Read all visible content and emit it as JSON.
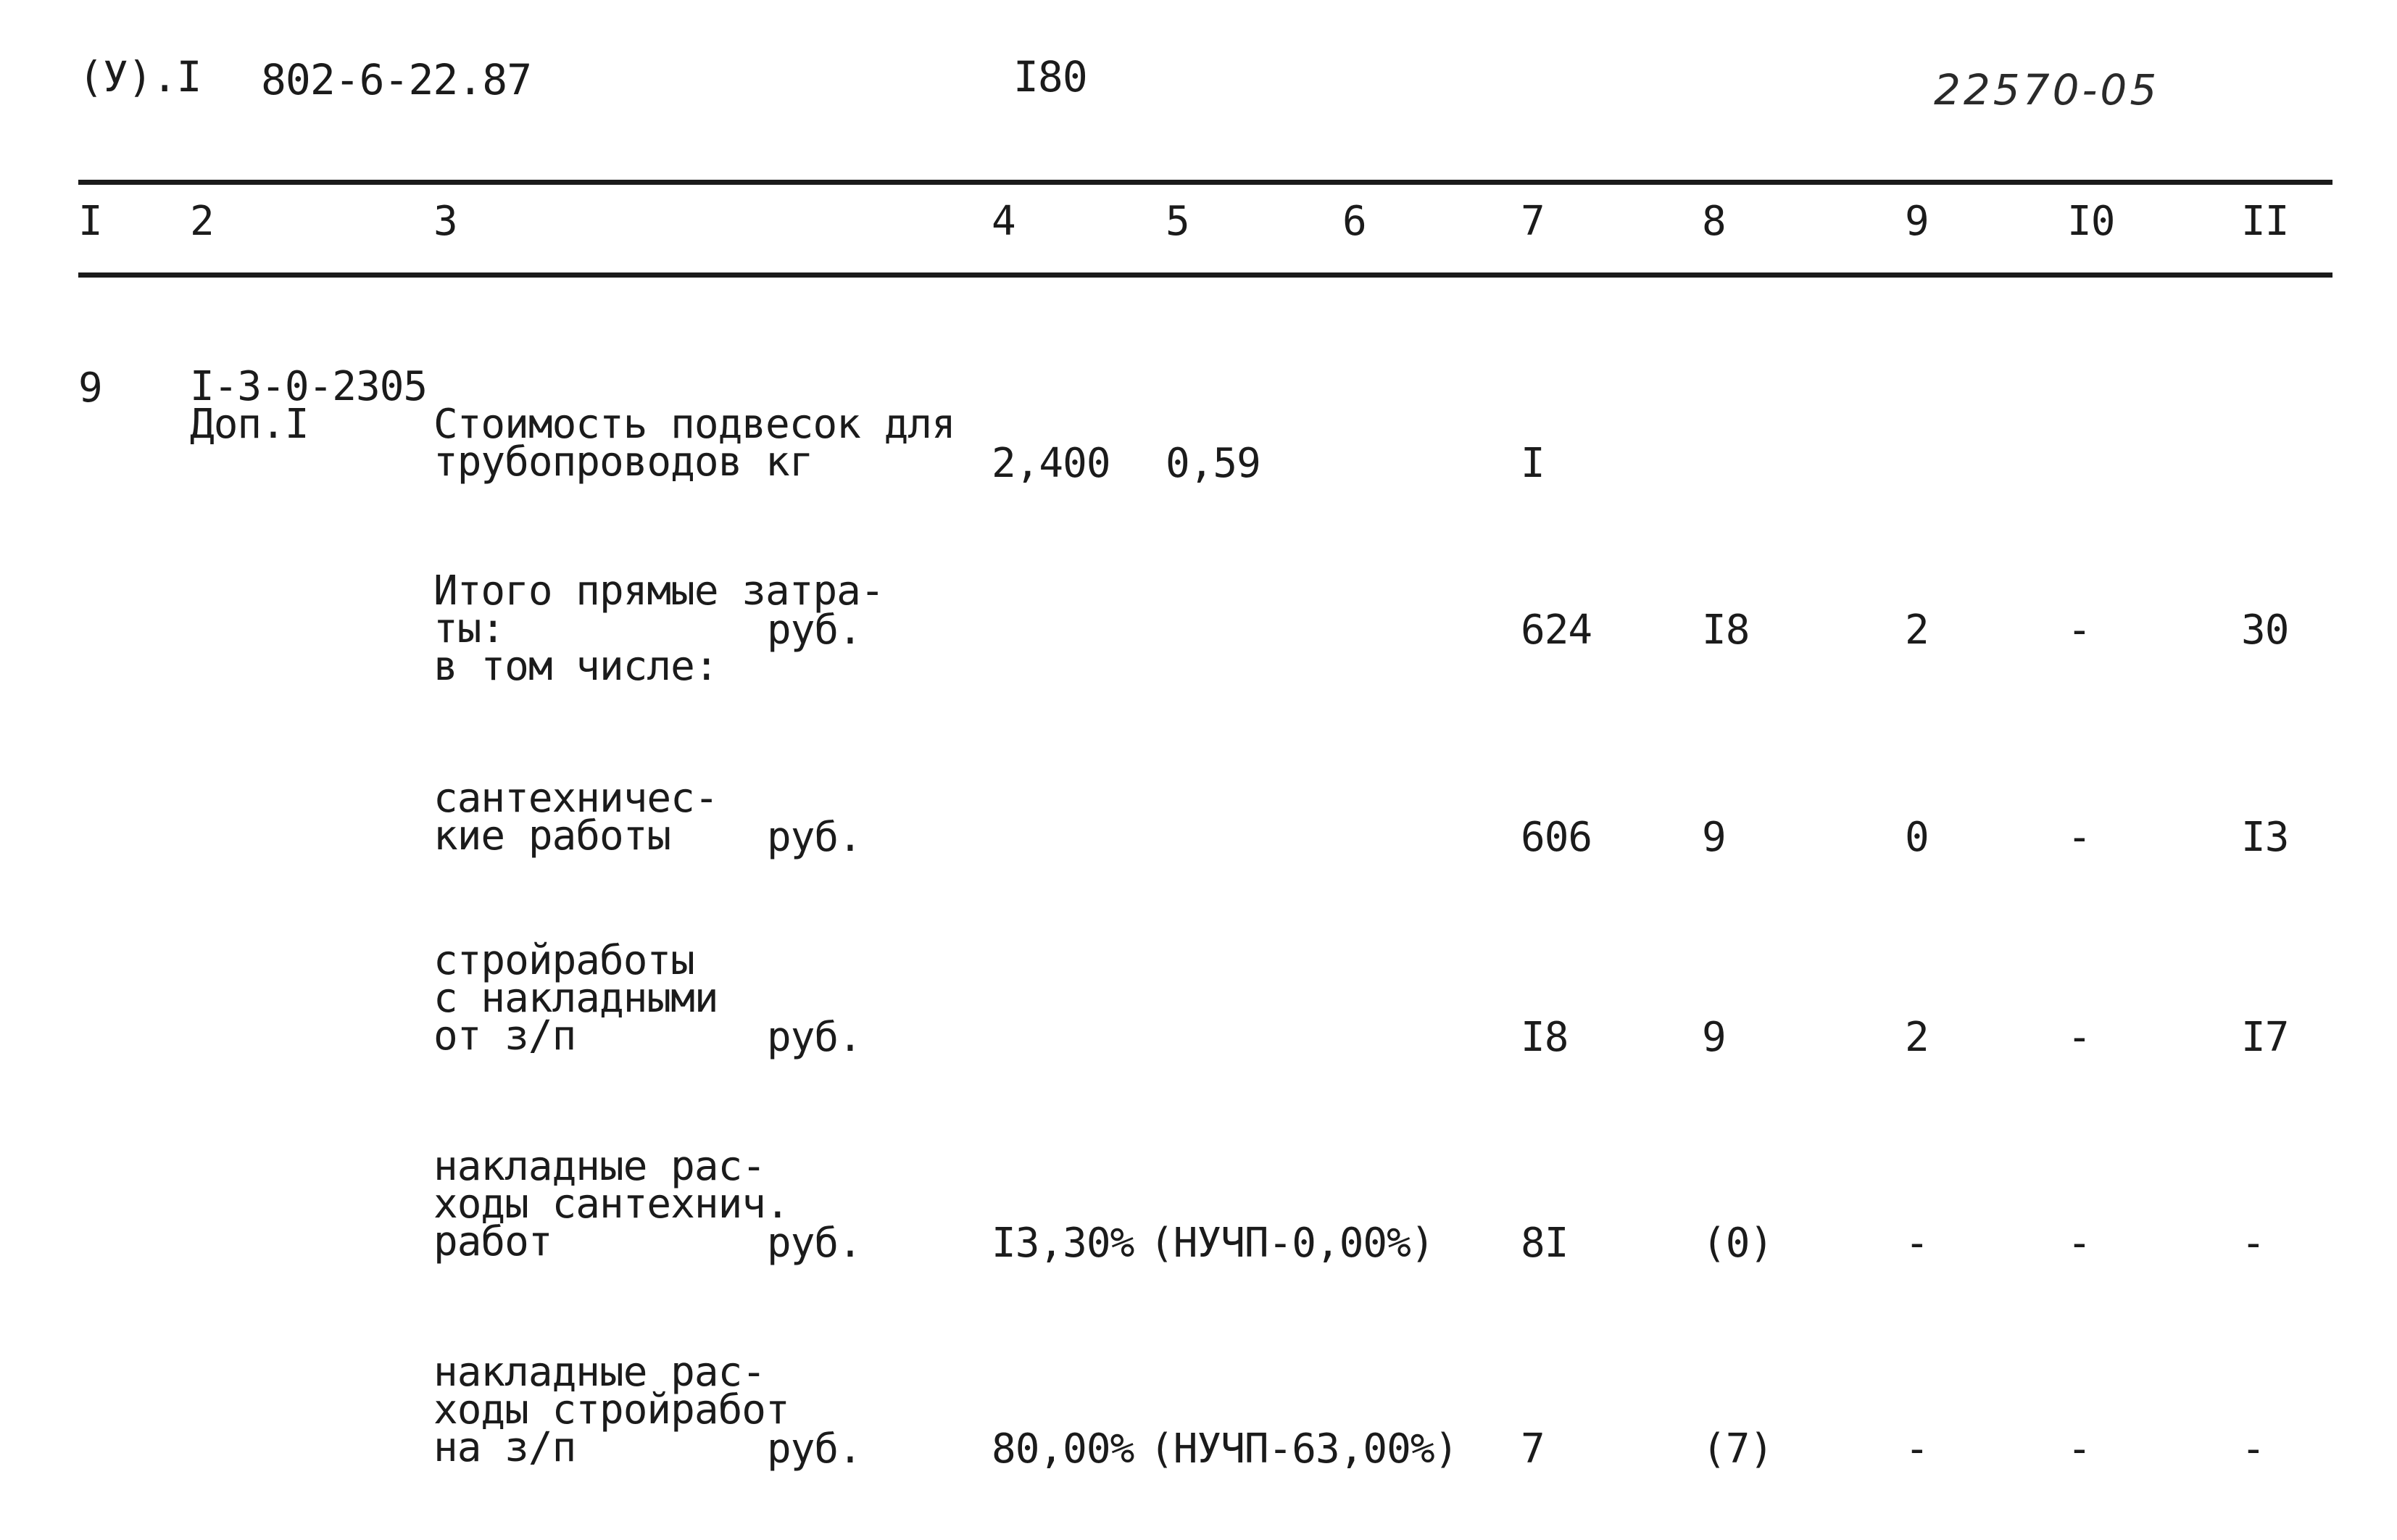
{
  "header": {
    "sheet_ref": "(У).I",
    "doc_code": "802-6-22.87",
    "page_number": "I80",
    "archive_code": "22570-05"
  },
  "columns": [
    "I",
    "2",
    "3",
    "4",
    "5",
    "6",
    "7",
    "8",
    "9",
    "I0",
    "II"
  ],
  "item": {
    "number": "9",
    "code": "I-3-0-2305",
    "code_note": "Доп.I"
  },
  "rows": [
    {
      "desc": [
        "Стоимость подвесок для",
        "трубопроводов кг"
      ],
      "unit": "",
      "col4": "2,400",
      "col5": "0,59",
      "col7": "I",
      "col8": "",
      "col9": "",
      "col10": "",
      "col11": ""
    },
    {
      "desc": [
        "Итого прямые затра-",
        "ты:",
        "в том числе:"
      ],
      "unit": "руб.",
      "col4": "",
      "col5": "",
      "col7": "624",
      "col8": "I8",
      "col9": "2",
      "col10": "-",
      "col11": "30"
    },
    {
      "desc": [
        "сантехничес-",
        "кие работы"
      ],
      "unit": "руб.",
      "col4": "",
      "col5": "",
      "col7": "606",
      "col8": "9",
      "col9": "0",
      "col10": "-",
      "col11": "I3"
    },
    {
      "desc": [
        "стройработы",
        "с накладными",
        "от з/п"
      ],
      "unit": "руб.",
      "col4": "",
      "col5": "",
      "col7": "I8",
      "col8": "9",
      "col9": "2",
      "col10": "-",
      "col11": "I7"
    },
    {
      "desc": [
        "накладные рас-",
        "ходы сантехнич.",
        "работ"
      ],
      "unit": "руб.",
      "col4": "I3,30%",
      "col5": "(НУЧП-0,00%)",
      "col7": "8I",
      "col8": "(0)",
      "col9": "-",
      "col10": "-",
      "col11": "-"
    },
    {
      "desc": [
        "накладные рас-",
        "ходы стройработ",
        "на з/п"
      ],
      "unit": "руб.",
      "col4": "80,00%",
      "col5": "(НУЧП-63,00%)",
      "col7": "7",
      "col8": "(7)",
      "col9": "-",
      "col10": "-",
      "col11": "-"
    }
  ]
}
